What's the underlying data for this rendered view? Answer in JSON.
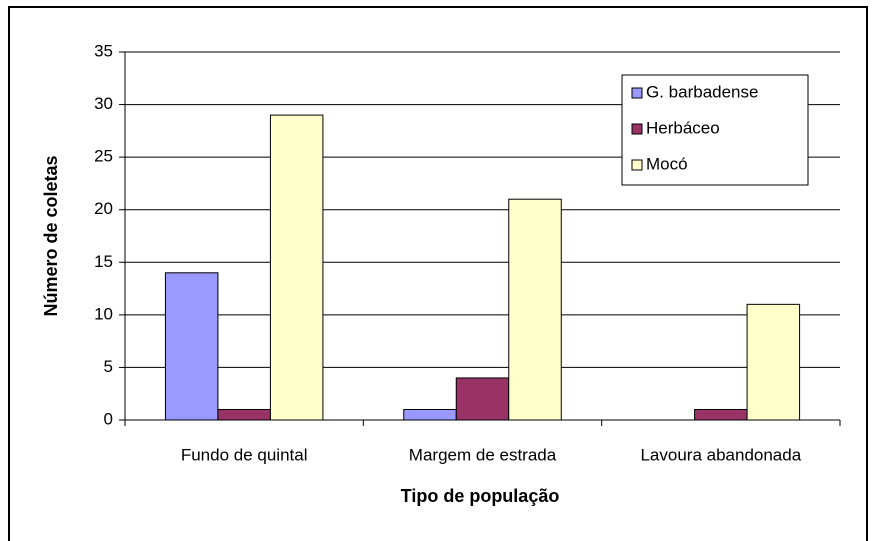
{
  "chart_data": {
    "type": "bar",
    "x_label": "Tipo de população",
    "y_label": "Número de coletas",
    "categories": [
      "Fundo de quintal",
      "Margem de estrada",
      "Lavoura abandonada"
    ],
    "series": [
      {
        "name": "G. barbadense",
        "color": "#9999ff",
        "values": [
          14,
          1,
          0
        ]
      },
      {
        "name": "Herbáceo",
        "color": "#993366",
        "values": [
          1,
          4,
          1
        ]
      },
      {
        "name": "Mocó",
        "color": "#ffffcc",
        "values": [
          29,
          21,
          11
        ]
      }
    ],
    "ylim": [
      0,
      35
    ],
    "yticks": [
      0,
      5,
      10,
      15,
      20,
      25,
      30,
      35
    ],
    "grid": true,
    "legend": "upper right"
  }
}
